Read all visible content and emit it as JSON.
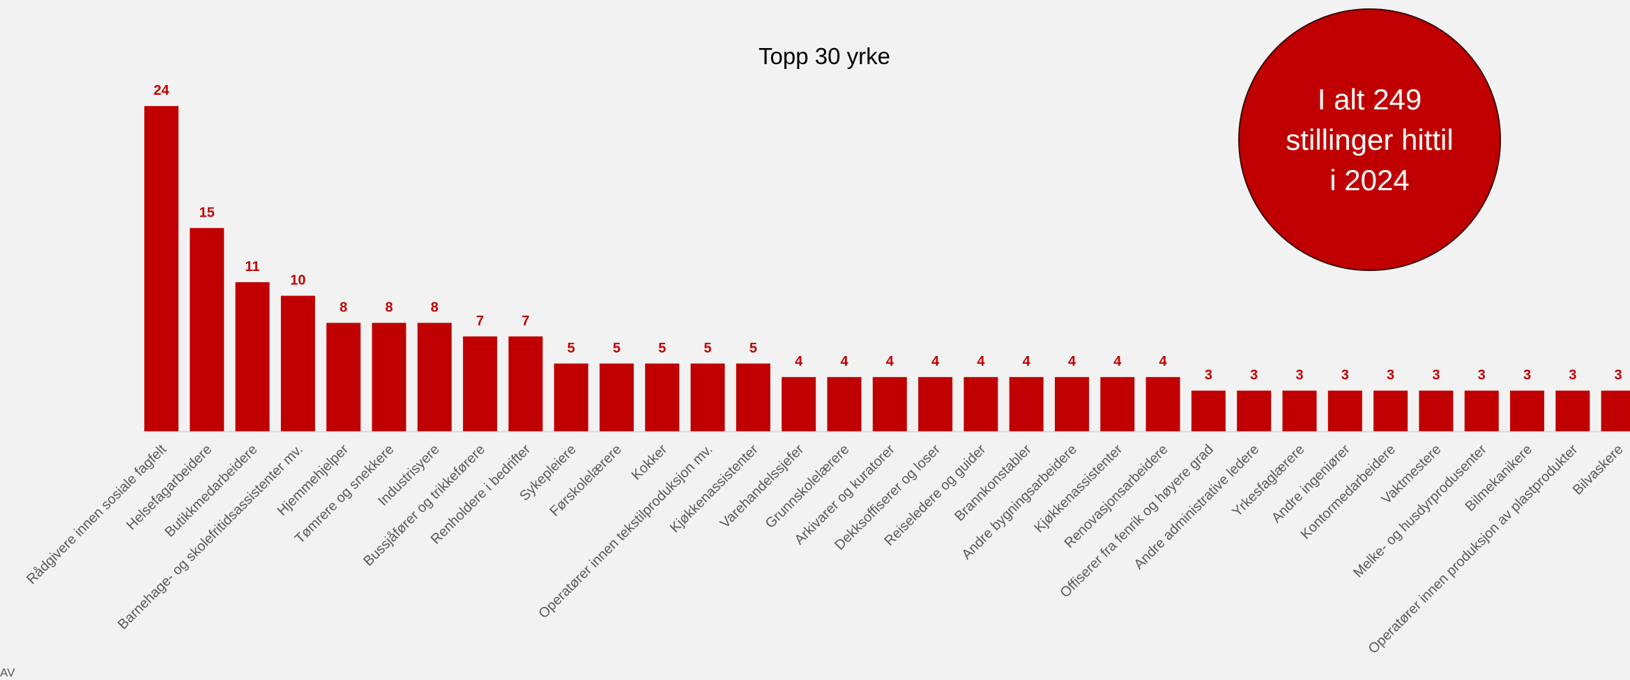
{
  "callout": {
    "text": "I alt 249 stillinger hittil i 2024"
  },
  "footer": {
    "mark": "AV"
  },
  "colors": {
    "bar": "#c00000",
    "value_label": "#c00000",
    "background": "#f2f2f2",
    "axis": "#d9d9d9",
    "category_label": "#595959"
  },
  "chart_data": {
    "type": "bar",
    "title": "Topp 30 yrke",
    "xlabel": "",
    "ylabel": "",
    "ylim": [
      0,
      24
    ],
    "grid": false,
    "data_labels": true,
    "categories": [
      "Rådgivere innen sosiale fagfelt",
      "Helsefagarbeidere",
      "Butikkmedarbeidere",
      "Barnehage- og skolefritidsassistenter mv.",
      "Hjemmehjelper",
      "Tømrere og snekkere",
      "Industrisyere",
      "Bussjåfører og trikkeførere",
      "Renholdere i bedrifter",
      "Sykepleiere",
      "Førskolelærere",
      "Kokker",
      "Operatører innen tekstilproduksjon mv.",
      "Kjøkkenassistenter",
      "Varehandelssjefer",
      "Grunnskolelærere",
      "Arkivarer og kuratorer",
      "Dekksoffiserer og loser",
      "Reiseledere og guider",
      "Brannkonstabler",
      "Andre bygningsarbeidere",
      "Kjøkkenassistenter",
      "Renovasjonsarbeidere",
      "Offiserer fra fenrik og høyere grad",
      "Andre administrative ledere",
      "Yrkesfaglærere",
      "Andre ingeniører",
      "Kontormedarbeidere",
      "Vaktmestere",
      "Melke- og husdyrprodusenter",
      "Bilmekanikere",
      "Operatører innen produksjon av plastprodukter",
      "Bilvaskere"
    ],
    "values": [
      24,
      15,
      11,
      10,
      8,
      8,
      8,
      7,
      7,
      5,
      5,
      5,
      5,
      5,
      4,
      4,
      4,
      4,
      4,
      4,
      4,
      4,
      4,
      3,
      3,
      3,
      3,
      3,
      3,
      3,
      3,
      3,
      3
    ]
  }
}
